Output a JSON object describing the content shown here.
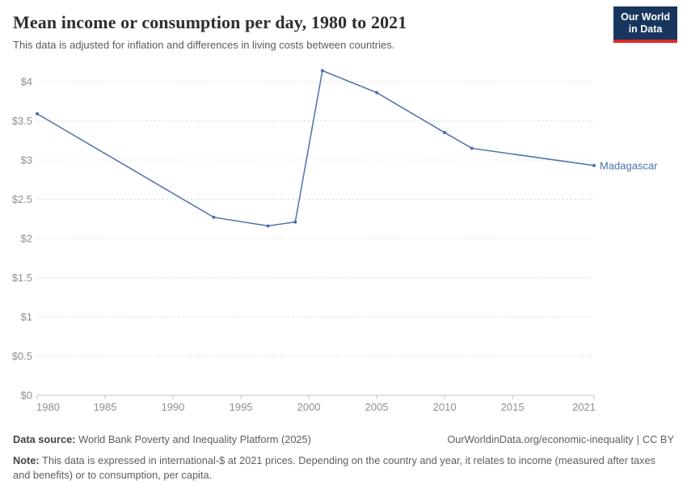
{
  "chart_data": {
    "type": "line",
    "title": "Mean income or consumption per day, 1980 to 2021",
    "subtitle": "This data is adjusted for inflation and differences in living costs between countries.",
    "x": [
      1980,
      1993,
      1997,
      1999,
      2001,
      2005,
      2010,
      2012,
      2021
    ],
    "series": [
      {
        "name": "Madagascar",
        "color": "#4d70ab",
        "values": [
          3.59,
          2.27,
          2.16,
          2.21,
          4.14,
          3.86,
          3.35,
          3.15,
          2.93
        ]
      }
    ],
    "x_ticks": [
      1980,
      1985,
      1990,
      1995,
      2000,
      2005,
      2010,
      2015,
      2021
    ],
    "y_ticks": [
      0,
      0.5,
      1,
      1.5,
      2,
      2.5,
      3,
      3.5,
      4
    ],
    "y_tick_prefix": "$",
    "x_range": [
      1980,
      2021
    ],
    "ylim": [
      0,
      4.25
    ],
    "xlabel": "",
    "ylabel": "",
    "grid": "horizontal-dashed",
    "legend_position": "end-of-line-label",
    "end_label": "Madagascar",
    "marker": "circle"
  },
  "logo": {
    "line1": "Our World",
    "line2": "in Data",
    "bg_color": "#18355e",
    "accent_color": "#dc2c27"
  },
  "footer": {
    "data_source_label": "Data source:",
    "data_source_text": "World Bank Poverty and Inequality Platform (2025)",
    "citation_url": "OurWorldinData.org/economic-inequality",
    "separator": "|",
    "license": "CC BY",
    "note_label": "Note:",
    "note_text": "This data is expressed in international-$ at 2021 prices. Depending on the country and year, it relates to income (measured after taxes and benefits) or to consumption, per capita."
  }
}
